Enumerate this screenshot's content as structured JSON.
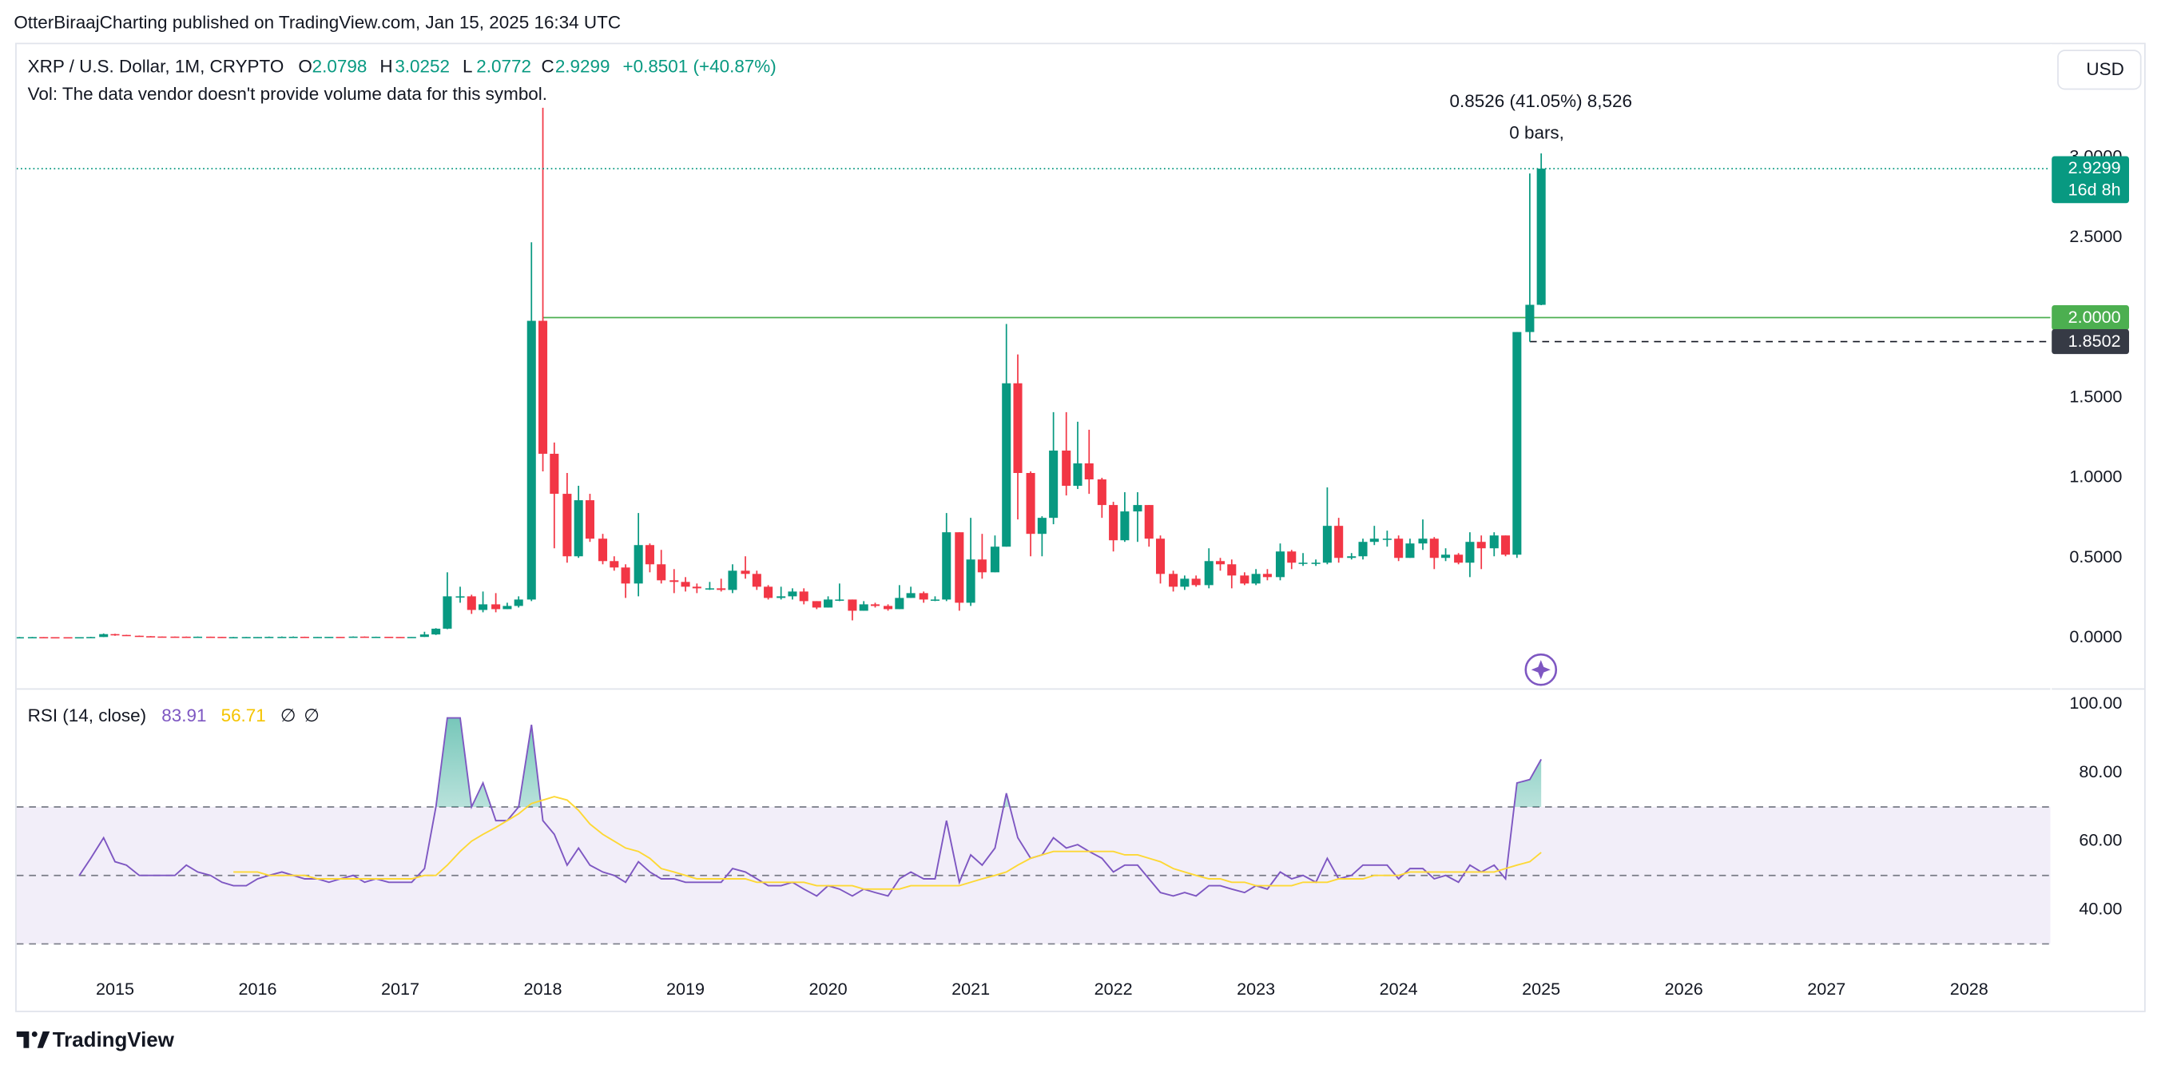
{
  "header": {
    "attribution": "OtterBiraajCharting published on TradingView.com, Jan 15, 2025 16:34 UTC"
  },
  "chart_data": [
    {
      "type": "candlestick",
      "title": "XRP / U.S. Dollar, 1M, CRYPTO",
      "ohlc_labels": [
        "O",
        "H",
        "L",
        "C"
      ],
      "change": "+0.8501 (+40.87%)",
      "note": "Vol: The data vendor doesn't provide volume data for this symbol.",
      "currency": "USD",
      "countdown": "16d 8h",
      "annotations": [
        "0.8526 (41.05%) 8,526",
        "0 bars,"
      ],
      "up_color": "#089981",
      "down_color": "#f23645",
      "grid": false,
      "xlim": [
        2014.31,
        2028.57
      ],
      "xticks": [
        2015,
        2016,
        2017,
        2018,
        2019,
        2020,
        2021,
        2022,
        2023,
        2024,
        2025,
        2026,
        2027,
        2028
      ],
      "ylim": [
        -0.31,
        3.707
      ],
      "yticks": [
        {
          "value": 0,
          "label": "0.0000"
        },
        {
          "value": 0.5,
          "label": "0.5000"
        },
        {
          "value": 1,
          "label": "1.0000"
        },
        {
          "value": 1.5,
          "label": "1.5000"
        },
        {
          "value": 2.5,
          "label": "2.5000"
        },
        {
          "value": 3,
          "label": "3.0000"
        }
      ],
      "hlines": [
        {
          "value": 2,
          "label": "2.0000",
          "color": "#4caf50",
          "from": 2018,
          "style": "solid"
        },
        {
          "value": 1.8502,
          "color": "#131722",
          "tag_color": "#363a45",
          "from": 2024.92,
          "style": "dashed"
        }
      ],
      "x": [
        2014.33,
        2014.42,
        2014.5,
        2014.58,
        2014.67,
        2014.75,
        2014.83,
        2014.92,
        2015,
        2015.08,
        2015.17,
        2015.25,
        2015.33,
        2015.42,
        2015.5,
        2015.58,
        2015.67,
        2015.75,
        2015.83,
        2015.92,
        2016,
        2016.08,
        2016.17,
        2016.25,
        2016.33,
        2016.42,
        2016.5,
        2016.58,
        2016.67,
        2016.75,
        2016.83,
        2016.92,
        2017,
        2017.08,
        2017.17,
        2017.25,
        2017.33,
        2017.42,
        2017.5,
        2017.58,
        2017.67,
        2017.75,
        2017.83,
        2017.92,
        2018,
        2018.08,
        2018.17,
        2018.25,
        2018.33,
        2018.42,
        2018.5,
        2018.58,
        2018.67,
        2018.75,
        2018.83,
        2018.92,
        2019,
        2019.08,
        2019.17,
        2019.25,
        2019.33,
        2019.42,
        2019.5,
        2019.58,
        2019.67,
        2019.75,
        2019.83,
        2019.92,
        2020,
        2020.08,
        2020.17,
        2020.25,
        2020.33,
        2020.42,
        2020.5,
        2020.58,
        2020.67,
        2020.75,
        2020.83,
        2020.92,
        2021,
        2021.08,
        2021.17,
        2021.25,
        2021.33,
        2021.42,
        2021.5,
        2021.58,
        2021.67,
        2021.75,
        2021.83,
        2021.92,
        2022,
        2022.08,
        2022.17,
        2022.25,
        2022.33,
        2022.42,
        2022.5,
        2022.58,
        2022.67,
        2022.75,
        2022.83,
        2022.92,
        2023,
        2023.08,
        2023.17,
        2023.25,
        2023.33,
        2023.42,
        2023.5,
        2023.58,
        2023.67,
        2023.75,
        2023.83,
        2023.92,
        2024,
        2024.08,
        2024.17,
        2024.25,
        2024.33,
        2024.42,
        2024.5,
        2024.58,
        2024.67,
        2024.75,
        2024.83,
        2024.92,
        2025
      ],
      "open": [
        0.0048,
        0.005,
        0.0055,
        0.005,
        0.0048,
        0.0045,
        0.005,
        0.006,
        0.024,
        0.019,
        0.014,
        0.011,
        0.009,
        0.0085,
        0.008,
        0.0075,
        0.008,
        0.007,
        0.005,
        0.0055,
        0.006,
        0.006,
        0.007,
        0.007,
        0.0075,
        0.0065,
        0.0065,
        0.007,
        0.0064,
        0.0085,
        0.007,
        0.0075,
        0.0065,
        0.0063,
        0.0065,
        0.022,
        0.058,
        0.26,
        0.26,
        0.175,
        0.21,
        0.18,
        0.2,
        0.24,
        1.98,
        1.15,
        0.9,
        0.51,
        0.86,
        0.62,
        0.48,
        0.44,
        0.34,
        0.58,
        0.46,
        0.36,
        0.35,
        0.32,
        0.31,
        0.31,
        0.3,
        0.42,
        0.4,
        0.32,
        0.25,
        0.26,
        0.29,
        0.23,
        0.19,
        0.24,
        0.24,
        0.17,
        0.21,
        0.2,
        0.18,
        0.25,
        0.28,
        0.24,
        0.24,
        0.66,
        0.22,
        0.49,
        0.41,
        0.57,
        1.59,
        1.03,
        0.65,
        0.75,
        1.17,
        0.95,
        1.09,
        0.99,
        0.83,
        0.61,
        0.79,
        0.83,
        0.62,
        0.4,
        0.32,
        0.37,
        0.33,
        0.48,
        0.46,
        0.39,
        0.34,
        0.4,
        0.38,
        0.54,
        0.47,
        0.47,
        0.47,
        0.7,
        0.5,
        0.51,
        0.6,
        0.62,
        0.62,
        0.5,
        0.59,
        0.62,
        0.5,
        0.52,
        0.47,
        0.6,
        0.56,
        0.64,
        0.52,
        1.91,
        2.0798
      ],
      "high": [
        0.006,
        0.006,
        0.0058,
        0.0052,
        0.005,
        0.0052,
        0.007,
        0.028,
        0.026,
        0.02,
        0.015,
        0.012,
        0.0095,
        0.009,
        0.0085,
        0.0085,
        0.0082,
        0.0072,
        0.006,
        0.0065,
        0.0065,
        0.0085,
        0.0095,
        0.0095,
        0.008,
        0.0075,
        0.0072,
        0.0072,
        0.0095,
        0.0092,
        0.008,
        0.0078,
        0.0068,
        0.0068,
        0.039,
        0.061,
        0.41,
        0.32,
        0.27,
        0.29,
        0.28,
        0.22,
        0.26,
        2.47,
        3.31,
        1.22,
        1.03,
        0.95,
        0.9,
        0.65,
        0.51,
        0.46,
        0.78,
        0.59,
        0.55,
        0.43,
        0.38,
        0.34,
        0.35,
        0.37,
        0.46,
        0.51,
        0.42,
        0.33,
        0.32,
        0.31,
        0.31,
        0.23,
        0.26,
        0.34,
        0.24,
        0.23,
        0.22,
        0.21,
        0.33,
        0.32,
        0.29,
        0.26,
        0.78,
        0.66,
        0.75,
        0.65,
        0.64,
        1.96,
        1.77,
        1.04,
        0.76,
        1.41,
        1.41,
        1.35,
        1.3,
        1,
        0.85,
        0.91,
        0.91,
        0.83,
        0.64,
        0.42,
        0.39,
        0.39,
        0.56,
        0.5,
        0.49,
        0.41,
        0.43,
        0.43,
        0.59,
        0.55,
        0.53,
        0.49,
        0.94,
        0.75,
        0.53,
        0.62,
        0.7,
        0.67,
        0.64,
        0.62,
        0.74,
        0.63,
        0.56,
        0.53,
        0.66,
        0.64,
        0.66,
        0.64,
        1.91,
        2.9,
        3.0252
      ],
      "low": [
        0.0045,
        0.0048,
        0.0048,
        0.0045,
        0.0043,
        0.0043,
        0.0048,
        0.0058,
        0.014,
        0.013,
        0.01,
        0.0085,
        0.008,
        0.0075,
        0.0072,
        0.007,
        0.0065,
        0.0045,
        0.0048,
        0.0052,
        0.0055,
        0.0058,
        0.0065,
        0.0068,
        0.0055,
        0.006,
        0.0058,
        0.006,
        0.0062,
        0.0068,
        0.0066,
        0.0062,
        0.006,
        0.0061,
        0.0062,
        0.019,
        0.055,
        0.22,
        0.15,
        0.16,
        0.16,
        0.18,
        0.19,
        0.23,
        1.04,
        0.56,
        0.47,
        0.5,
        0.6,
        0.46,
        0.42,
        0.25,
        0.26,
        0.41,
        0.34,
        0.28,
        0.29,
        0.28,
        0.3,
        0.29,
        0.28,
        0.37,
        0.3,
        0.24,
        0.24,
        0.24,
        0.21,
        0.18,
        0.19,
        0.23,
        0.11,
        0.17,
        0.19,
        0.17,
        0.18,
        0.25,
        0.22,
        0.23,
        0.23,
        0.17,
        0.2,
        0.37,
        0.41,
        0.57,
        0.74,
        0.51,
        0.51,
        0.71,
        0.89,
        0.93,
        0.9,
        0.75,
        0.54,
        0.6,
        0.6,
        0.57,
        0.34,
        0.29,
        0.3,
        0.32,
        0.31,
        0.42,
        0.31,
        0.33,
        0.33,
        0.36,
        0.36,
        0.43,
        0.45,
        0.45,
        0.46,
        0.47,
        0.49,
        0.49,
        0.58,
        0.57,
        0.48,
        0.5,
        0.55,
        0.43,
        0.48,
        0.46,
        0.38,
        0.43,
        0.51,
        0.51,
        0.5,
        1.85,
        2.0772
      ],
      "close": [
        0.005,
        0.0055,
        0.005,
        0.0048,
        0.0045,
        0.005,
        0.006,
        0.024,
        0.019,
        0.014,
        0.011,
        0.009,
        0.0085,
        0.008,
        0.0075,
        0.008,
        0.007,
        0.005,
        0.0055,
        0.006,
        0.006,
        0.007,
        0.007,
        0.0075,
        0.0065,
        0.0065,
        0.007,
        0.0064,
        0.0085,
        0.007,
        0.0075,
        0.0065,
        0.0063,
        0.0065,
        0.022,
        0.058,
        0.26,
        0.26,
        0.175,
        0.21,
        0.18,
        0.2,
        0.24,
        1.98,
        1.15,
        0.9,
        0.51,
        0.86,
        0.62,
        0.48,
        0.44,
        0.34,
        0.58,
        0.46,
        0.36,
        0.35,
        0.32,
        0.31,
        0.31,
        0.3,
        0.42,
        0.4,
        0.32,
        0.25,
        0.26,
        0.29,
        0.23,
        0.19,
        0.24,
        0.24,
        0.17,
        0.21,
        0.2,
        0.18,
        0.25,
        0.28,
        0.24,
        0.24,
        0.66,
        0.22,
        0.49,
        0.41,
        0.57,
        1.59,
        1.03,
        0.65,
        0.75,
        1.17,
        0.95,
        1.09,
        0.99,
        0.83,
        0.61,
        0.79,
        0.83,
        0.62,
        0.4,
        0.32,
        0.37,
        0.33,
        0.48,
        0.46,
        0.39,
        0.34,
        0.4,
        0.38,
        0.54,
        0.47,
        0.47,
        0.47,
        0.7,
        0.5,
        0.51,
        0.6,
        0.62,
        0.62,
        0.5,
        0.59,
        0.62,
        0.5,
        0.52,
        0.47,
        0.6,
        0.56,
        0.64,
        0.52,
        1.91,
        2.08,
        2.9299
      ]
    },
    {
      "type": "line",
      "title": "RSI (14, close)",
      "extras": [
        "∅",
        "∅"
      ],
      "ylim": [
        23.39,
        104.03
      ],
      "yticks": [
        {
          "value": 100,
          "label": "100.00"
        },
        {
          "value": 80,
          "label": "80.00"
        },
        {
          "value": 60,
          "label": "60.00"
        },
        {
          "value": 40,
          "label": "40.00"
        }
      ],
      "bands": [
        70,
        50,
        30
      ],
      "band_color": "#7e57c2",
      "overbought_fill": "#089981",
      "series": [
        {
          "name": "RSI",
          "color": "#7e57c2",
          "values": [
            null,
            null,
            null,
            null,
            null,
            50,
            55,
            61,
            54,
            53,
            50,
            50,
            50,
            50,
            53,
            51,
            50,
            48,
            47,
            47,
            49,
            50,
            51,
            50,
            49,
            49,
            48,
            49,
            50,
            48,
            49,
            48,
            48,
            48,
            52,
            70,
            96,
            96,
            70,
            77,
            66,
            66,
            70,
            94,
            66,
            62,
            53,
            58,
            53,
            51,
            50,
            48,
            54,
            51,
            49,
            49,
            48,
            48,
            48,
            48,
            52,
            51,
            49,
            47,
            47,
            48,
            46,
            44,
            47,
            46,
            44,
            46,
            45,
            44,
            49,
            51,
            49,
            49,
            66,
            48,
            56,
            53,
            58,
            74,
            61,
            55,
            56,
            61,
            58,
            59,
            57,
            55,
            51,
            53,
            53,
            49,
            45,
            44,
            45,
            44,
            47,
            47,
            46,
            45,
            47,
            46,
            51,
            49,
            50,
            48,
            55,
            49,
            50,
            53,
            53,
            53,
            49,
            52,
            52,
            49,
            50,
            48,
            53,
            51,
            53,
            49,
            77,
            78,
            83.91
          ]
        },
        {
          "name": "RSI-based MA",
          "color": "#fdd835",
          "values": [
            null,
            null,
            null,
            null,
            null,
            null,
            null,
            null,
            null,
            null,
            null,
            null,
            null,
            null,
            null,
            null,
            null,
            null,
            51,
            51,
            51,
            50,
            50,
            50,
            50,
            49,
            49,
            49,
            49,
            49,
            49,
            49,
            49,
            49,
            50,
            50,
            53,
            57,
            60,
            62,
            64,
            66,
            68,
            71,
            72,
            73,
            72,
            69,
            65,
            62,
            60,
            58,
            57,
            55,
            52,
            51,
            50,
            49,
            49,
            49,
            49,
            49,
            48,
            48,
            48,
            48,
            48,
            47,
            47,
            47,
            47,
            46,
            46,
            46,
            46,
            47,
            47,
            47,
            47,
            47,
            48,
            49,
            50,
            51,
            53,
            55,
            56,
            57,
            57,
            57,
            57,
            57,
            57,
            56,
            56,
            55,
            54,
            52,
            51,
            50,
            49,
            49,
            48,
            48,
            47,
            47,
            47,
            47,
            48,
            48,
            48,
            49,
            49,
            49,
            50,
            50,
            50,
            51,
            51,
            51,
            51,
            51,
            51,
            51,
            51,
            52,
            53,
            54,
            56.71
          ]
        }
      ]
    }
  ],
  "footer": {
    "brand": "TradingView"
  }
}
